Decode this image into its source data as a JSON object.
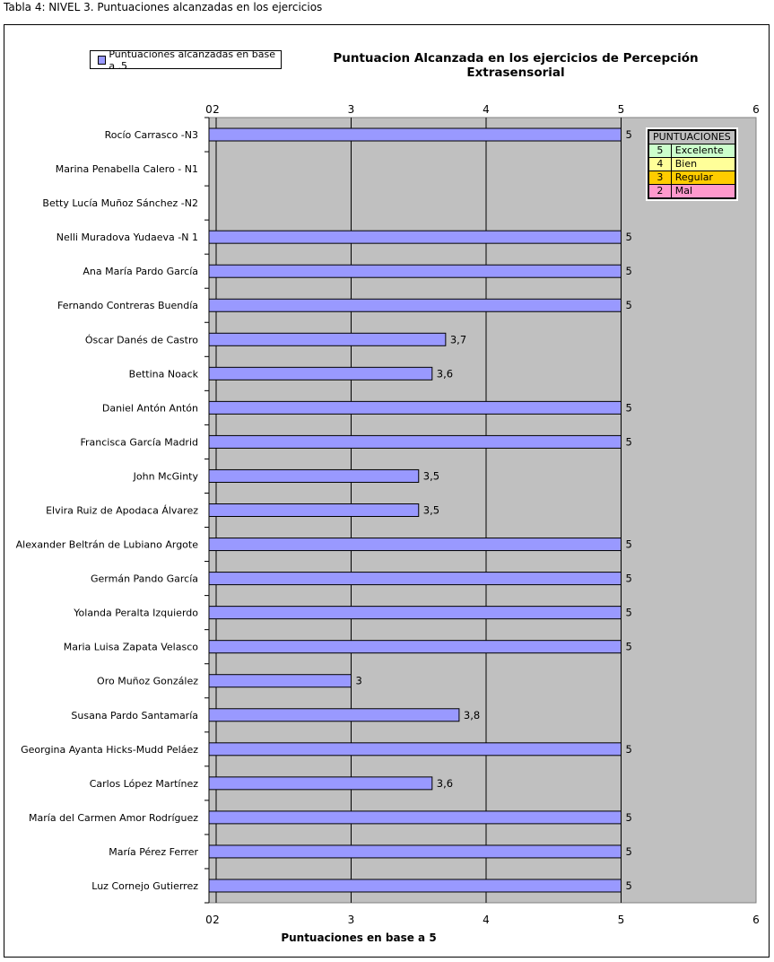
{
  "caption": "Tabla 4: NIVEL 3. Puntuaciones alcanzadas en los ejercicios",
  "chart_data": {
    "type": "bar",
    "orientation": "horizontal",
    "title": "Puntuacion Alcanzada en los ejercicios de Percepción Extrasensorial",
    "xlabel": "Puntuaciones en base a 5",
    "ylabel": "",
    "legend": {
      "position": "top-left",
      "entries": [
        "Puntuaciones alcanzadas en base a .5"
      ]
    },
    "xlim": [
      2,
      6
    ],
    "x_tick_labels": [
      "0",
      "2",
      "3",
      "4",
      "5",
      "6"
    ],
    "grid": true,
    "bar_color": "#9999ff",
    "plot_background": "#c0c0c0",
    "categories": [
      "Rocío Carrasco   -N3",
      "Marina Penabella Calero  - N1",
      "Betty Lucía Muñoz Sánchez   -N2",
      "Nelli Muradova Yudaeva  -N 1",
      "Ana María Pardo García",
      "Fernando Contreras Buendía",
      "Óscar Danés de Castro",
      "Bettina Noack",
      "Daniel Antón Antón",
      "Francisca García Madrid",
      "John McGinty",
      "Elvira Ruiz de Apodaca Álvarez",
      "Alexander Beltrán de Lubiano Argote",
      "Germán Pando García",
      "Yolanda Peralta Izquierdo",
      "Maria Luisa Zapata Velasco",
      "Oro Muñoz González",
      "Susana Pardo Santamaría",
      "Georgina Ayanta Hicks-Mudd Peláez",
      "Carlos López Martínez",
      "María del Carmen Amor Rodríguez",
      "María Pérez Ferrer",
      "Luz Cornejo Gutierrez"
    ],
    "values": [
      5,
      null,
      null,
      5,
      5,
      5,
      3.7,
      3.6,
      5,
      5,
      3.5,
      3.5,
      5,
      5,
      5,
      5,
      3,
      3.8,
      5,
      3.6,
      5,
      5,
      5
    ],
    "data_labels": [
      "5",
      "",
      "",
      "5",
      "5",
      "5",
      "3,7",
      "3,6",
      "5",
      "5",
      "3,5",
      "3,5",
      "5",
      "5",
      "5",
      "5",
      "3",
      "3,8",
      "5",
      "3,6",
      "5",
      "5",
      "5"
    ]
  },
  "score_table": {
    "header": "PUNTUACIONES",
    "rows": [
      {
        "score": "5",
        "label": "Excelente",
        "color": "#ccffcc"
      },
      {
        "score": "4",
        "label": "Bien",
        "color": "#ffff99"
      },
      {
        "score": "3",
        "label": "Regular",
        "color": "#ffcc00"
      },
      {
        "score": "2",
        "label": "Mal",
        "color": "#ff99cc"
      }
    ]
  }
}
